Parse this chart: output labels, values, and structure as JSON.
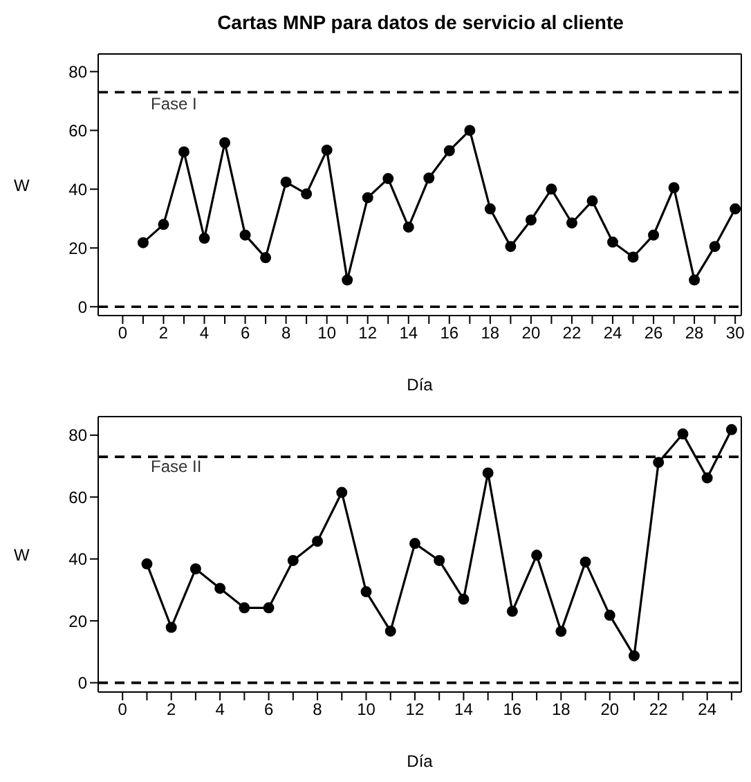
{
  "chart_data": [
    {
      "type": "line",
      "title": "Cartas MNP para datos de servicio al cliente",
      "xlabel": "Día",
      "ylabel": "W",
      "annotations": [
        "Fase I"
      ],
      "x": [
        1,
        2,
        3,
        4,
        5,
        6,
        7,
        8,
        9,
        10,
        11,
        12,
        13,
        14,
        15,
        16,
        17,
        18,
        19,
        20,
        21,
        22,
        23,
        24,
        25,
        26,
        27,
        28,
        29,
        30
      ],
      "series": [
        {
          "color": "#000000",
          "values": [
            21.8,
            28,
            52.7,
            23.3,
            55.8,
            24.4,
            16.7,
            42.4,
            38.4,
            53.3,
            9.1,
            37.1,
            43.6,
            27.1,
            43.8,
            53.1,
            60,
            33.3,
            20.5,
            29.5,
            40,
            28.5,
            36,
            22,
            16.9,
            24.4,
            40.5,
            9.1,
            20.5,
            33.3
          ]
        }
      ],
      "ref_lines": [
        {
          "axis": "y",
          "value": 73,
          "color": "#000000",
          "line_style": "dashed"
        },
        {
          "axis": "y",
          "value": 0,
          "color": "#000000",
          "line_style": "dashed"
        }
      ],
      "xlim": [
        -1.2,
        30.3
      ],
      "ylim": [
        -3,
        86
      ],
      "xticks": [
        0,
        {
          "value": 1,
          "label": null
        },
        2,
        {
          "value": 3,
          "label": null
        },
        4,
        {
          "value": 5,
          "label": null
        },
        6,
        {
          "value": 7,
          "label": null
        },
        8,
        {
          "value": 9,
          "label": null
        },
        10,
        {
          "value": 11,
          "label": null
        },
        12,
        {
          "value": 13,
          "label": null
        },
        14,
        {
          "value": 15,
          "label": null
        },
        16,
        {
          "value": 17,
          "label": null
        },
        18,
        {
          "value": 19,
          "label": null
        },
        20,
        {
          "value": 21,
          "label": null
        },
        22,
        {
          "value": 23,
          "label": null
        },
        24,
        {
          "value": 25,
          "label": null
        },
        26,
        {
          "value": 27,
          "label": null
        },
        28,
        {
          "value": 29,
          "label": null
        },
        30
      ],
      "yticks": [
        0,
        20,
        40,
        60,
        80
      ],
      "marker": "circle",
      "line_style": "solid",
      "grid": false,
      "legend": false
    },
    {
      "type": "line",
      "xlabel": "Día",
      "ylabel": "W",
      "annotations": [
        "Fase II"
      ],
      "x": [
        1,
        2,
        3,
        4,
        5,
        6,
        7,
        8,
        9,
        10,
        11,
        12,
        13,
        14,
        15,
        16,
        17,
        18,
        19,
        20,
        21,
        22,
        23,
        24,
        25
      ],
      "series": [
        {
          "color": "#000000",
          "values": [
            38.4,
            17.9,
            36.8,
            30.5,
            24.2,
            24.2,
            39.5,
            45.7,
            61.5,
            29.4,
            16.7,
            45,
            39.5,
            27,
            67.8,
            23.1,
            41.2,
            16.6,
            39,
            21.8,
            8.7,
            71.2,
            80.4,
            66.2,
            81.8
          ]
        }
      ],
      "ref_lines": [
        {
          "axis": "y",
          "value": 73,
          "color": "#000000",
          "line_style": "dashed"
        },
        {
          "axis": "y",
          "value": 0,
          "color": "#000000",
          "line_style": "dashed"
        }
      ],
      "xlim": [
        -1,
        25.4
      ],
      "ylim": [
        -3,
        86
      ],
      "xticks": [
        0,
        {
          "value": 1,
          "label": null
        },
        2,
        {
          "value": 3,
          "label": null
        },
        4,
        {
          "value": 5,
          "label": null
        },
        6,
        {
          "value": 7,
          "label": null
        },
        8,
        {
          "value": 9,
          "label": null
        },
        10,
        {
          "value": 11,
          "label": null
        },
        12,
        {
          "value": 13,
          "label": null
        },
        14,
        {
          "value": 15,
          "label": null
        },
        16,
        {
          "value": 17,
          "label": null
        },
        18,
        {
          "value": 19,
          "label": null
        },
        20,
        {
          "value": 21,
          "label": null
        },
        22,
        {
          "value": 23,
          "label": null
        },
        24,
        {
          "value": 25,
          "label": null
        }
      ],
      "yticks": [
        0,
        20,
        40,
        60,
        80
      ],
      "marker": "circle",
      "line_style": "solid",
      "grid": false,
      "legend": false
    }
  ]
}
